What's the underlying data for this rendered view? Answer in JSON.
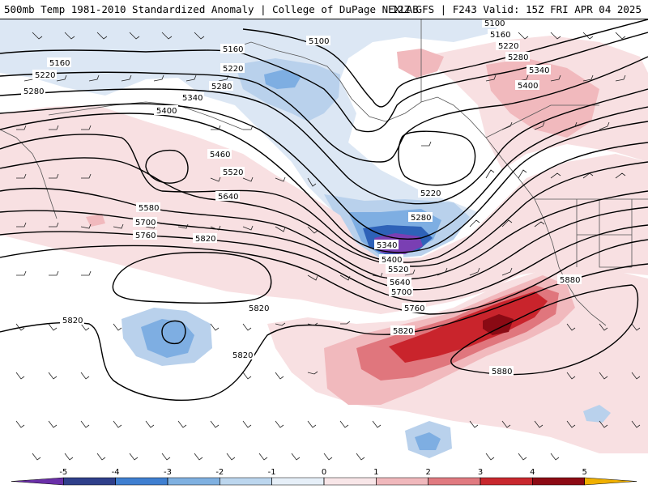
{
  "header": {
    "title": "500mb Temp 1981-2010 Standardized Anomaly | College of DuPage NEXLAB",
    "run_info": "12Z GFS | F243 Valid: 15Z FRI APR 04 2025"
  },
  "map": {
    "variable": "500mb height contours (dam) with standardized temperature anomaly shading and wind barbs",
    "region": "North Pacific, Alaska, western North America",
    "contour_labels": [
      "5100",
      "5100",
      "5160",
      "5160",
      "5160",
      "5220",
      "5220",
      "5220",
      "5220",
      "5280",
      "5280",
      "5280",
      "5280",
      "5280",
      "5340",
      "5340",
      "5340",
      "5400",
      "5400",
      "5400",
      "5460",
      "5520",
      "5520",
      "5580",
      "5640",
      "5640",
      "5700",
      "5700",
      "5760",
      "5760",
      "5820",
      "5820",
      "5820",
      "5820",
      "5820",
      "5880",
      "5880"
    ],
    "features": {
      "cold_core": "Deep negative anomaly (-5) embedded in trough south of Alaska near 5340 contour",
      "warm_anomaly": "Positive anomaly (+4 to +5) off the US west coast under the ridge",
      "closed_lows": [
        "Closed low near 5220 in Gulf of Alaska",
        "Closed low west near 5460",
        "Closed low near 5820 central Pacific"
      ]
    }
  },
  "colorbar": {
    "ticks": [
      "-5",
      "-4",
      "-3",
      "-2",
      "-1",
      "0",
      "1",
      "2",
      "3",
      "4",
      "5"
    ],
    "colors": [
      "#6a2fa8",
      "#2f3f8a",
      "#3f7fd0",
      "#7fb0e0",
      "#bcd6ee",
      "#e6eff8",
      "#f8e6e8",
      "#f0b8bc",
      "#e07a80",
      "#c8282e",
      "#8c0a14",
      "#f0b000"
    ],
    "min": -5.5,
    "max": 5.5
  },
  "colors": {
    "cold_light": "#dce7f4",
    "cold_mid": "#b9d1ec",
    "cold_strong": "#7eaee2",
    "cold_deep": "#2e62b8",
    "cold_core": "#7a3fb3",
    "warm_light": "#f8e0e2",
    "warm_mid": "#f1b9bd",
    "warm_strong": "#e0767d",
    "warm_deep": "#c9242c",
    "warm_core": "#8a0a14"
  }
}
